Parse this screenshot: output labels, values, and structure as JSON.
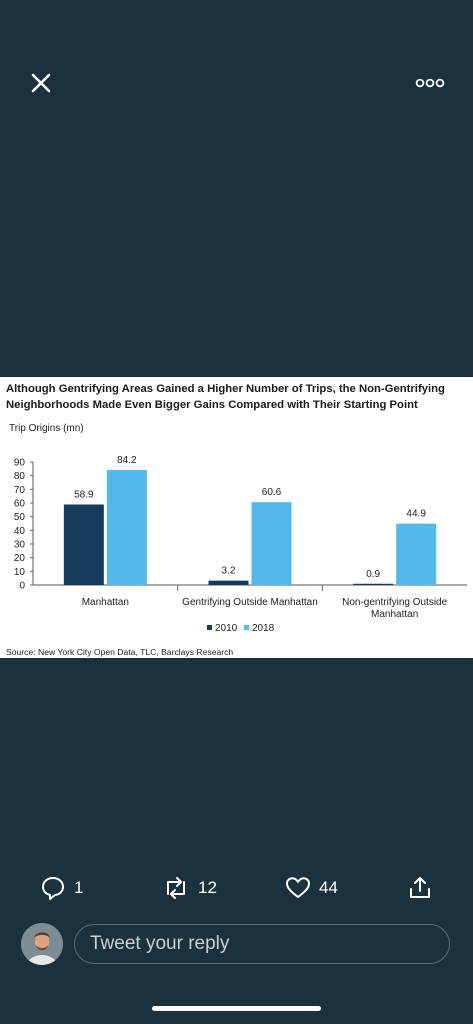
{
  "header": {
    "close_icon": "close-icon",
    "more_icon": "more-dots-icon"
  },
  "media": {
    "title": "Although Gentrifying Areas Gained a Higher Number of Trips, the Non-Gentrifying Neighborhoods Made Even Bigger Gains Compared with Their Starting Point",
    "source": "Source: New York City Open Data, TLC, Barclays Research"
  },
  "chart_data": {
    "type": "bar",
    "title": "Although Gentrifying Areas Gained a Higher Number of Trips, the Non-Gentrifying Neighborhoods Made Even Bigger Gains Compared with Their Starting Point",
    "ylabel": "Trip Origins (mn)",
    "xlabel": "",
    "ylim": [
      0,
      90
    ],
    "yticks": [
      0,
      10,
      20,
      30,
      40,
      50,
      60,
      70,
      80,
      90
    ],
    "categories": [
      "Manhattan",
      "Gentrifying Outside Manhattan",
      "Non-gentrifying Outside Manhattan"
    ],
    "category_lines": [
      [
        "Manhattan"
      ],
      [
        "Gentrifying Outside Manhattan"
      ],
      [
        "Non-gentrifying Outside",
        "Manhattan"
      ]
    ],
    "series": [
      {
        "name": "2010",
        "color": "#163a5e",
        "values": [
          58.9,
          3.2,
          0.9
        ],
        "labels": [
          "58.9",
          "3.2",
          "0.9"
        ]
      },
      {
        "name": "2018",
        "color": "#52b8ea",
        "values": [
          84.2,
          60.6,
          44.9
        ],
        "labels": [
          "84.2",
          "60.6",
          "44.9"
        ]
      }
    ],
    "legend_position": "bottom-center",
    "grid": false
  },
  "actions": {
    "reply_count": "1",
    "retweet_count": "12",
    "like_count": "44",
    "icons": [
      "reply-icon",
      "retweet-icon",
      "like-icon",
      "share-icon"
    ]
  },
  "reply": {
    "placeholder": "Tweet your reply"
  },
  "colors": {
    "background": "#1c313e",
    "text": "#ffffff",
    "bar_2010": "#163a5e",
    "bar_2018": "#52b8ea"
  }
}
